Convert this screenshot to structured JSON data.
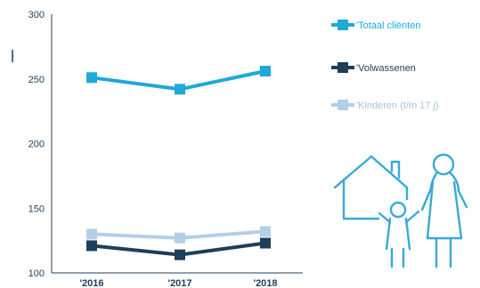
{
  "chart_data": {
    "type": "line",
    "categories": [
      "'2016",
      "'2017",
      "'2018"
    ],
    "ylim": [
      100,
      300
    ],
    "yticks": [
      100,
      150,
      200,
      250,
      300
    ],
    "title": "",
    "xlabel": "",
    "ylabel": "",
    "grid": false,
    "legend_position": "right",
    "series": [
      {
        "name": "'Totaal cliënten",
        "values": [
          251,
          242,
          256
        ],
        "color": "#1fa8d8"
      },
      {
        "name": "'Volwassenen",
        "values": [
          121,
          114,
          123
        ],
        "color": "#1d3f58"
      },
      {
        "name": "'Kinderen (t/m 17 j)",
        "values": [
          130,
          127,
          132
        ],
        "color": "#b3cfe8"
      }
    ]
  },
  "illustration": {
    "icon": "family-house-icon",
    "color": "#3aa9d6"
  }
}
